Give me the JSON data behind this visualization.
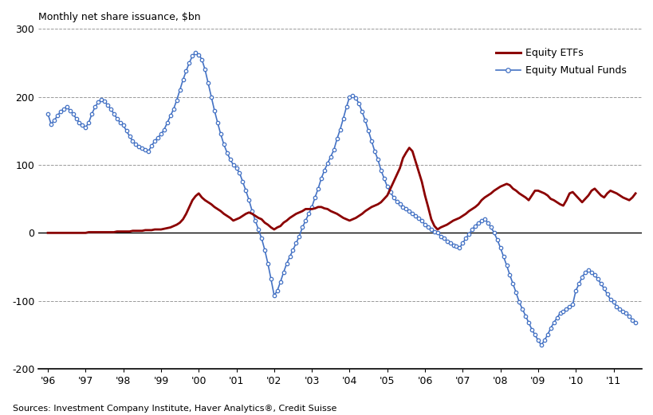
{
  "title": "Monthly net share issuance, $bn",
  "source_text": "Sources: Investment Company Institute, Haver Analytics®, Credit Suisse",
  "etf_color": "#8B0000",
  "mf_color": "#4472C4",
  "ylim": [
    -200,
    300
  ],
  "yticks": [
    -200,
    -100,
    0,
    100,
    200,
    300
  ],
  "x_start_year": 1996,
  "xtick_years": [
    1996,
    1997,
    1998,
    1999,
    2000,
    2001,
    2002,
    2003,
    2004,
    2005,
    2006,
    2007,
    2008,
    2009,
    2010,
    2011
  ],
  "etf_data": [
    0,
    0,
    0,
    0,
    0,
    0,
    0,
    0,
    0,
    0,
    0,
    0,
    0,
    1,
    1,
    1,
    1,
    1,
    1,
    1,
    1,
    1,
    2,
    2,
    2,
    2,
    2,
    3,
    3,
    3,
    3,
    4,
    4,
    4,
    5,
    5,
    5,
    6,
    7,
    8,
    10,
    12,
    15,
    20,
    28,
    38,
    48,
    54,
    58,
    52,
    48,
    45,
    42,
    38,
    35,
    32,
    28,
    25,
    22,
    18,
    20,
    22,
    25,
    28,
    30,
    28,
    25,
    22,
    20,
    15,
    12,
    8,
    5,
    8,
    10,
    15,
    18,
    22,
    25,
    28,
    30,
    32,
    35,
    35,
    35,
    36,
    38,
    38,
    36,
    35,
    32,
    30,
    28,
    25,
    22,
    20,
    18,
    20,
    22,
    25,
    28,
    32,
    35,
    38,
    40,
    42,
    45,
    50,
    55,
    65,
    75,
    85,
    95,
    110,
    118,
    125,
    120,
    105,
    90,
    75,
    55,
    38,
    20,
    10,
    5,
    8,
    10,
    12,
    15,
    18,
    20,
    22,
    25,
    28,
    32,
    35,
    38,
    42,
    48,
    52,
    55,
    58,
    62,
    65,
    68,
    70,
    72,
    70,
    65,
    62,
    58,
    55,
    52,
    48,
    55,
    62,
    62,
    60,
    58,
    55,
    50,
    48,
    45,
    42,
    40,
    48,
    58,
    60,
    55,
    50,
    45,
    50,
    55,
    62,
    65,
    60,
    55,
    52,
    58,
    62,
    60,
    58,
    55,
    52,
    50,
    48,
    52,
    58
  ],
  "mf_data": [
    175,
    160,
    165,
    172,
    178,
    182,
    185,
    180,
    175,
    168,
    162,
    158,
    155,
    162,
    175,
    185,
    192,
    196,
    193,
    188,
    182,
    175,
    168,
    162,
    158,
    150,
    142,
    135,
    130,
    127,
    124,
    122,
    120,
    128,
    135,
    140,
    145,
    152,
    162,
    172,
    182,
    195,
    210,
    225,
    238,
    250,
    260,
    265,
    262,
    255,
    240,
    220,
    200,
    180,
    162,
    145,
    130,
    118,
    108,
    100,
    95,
    88,
    75,
    62,
    48,
    32,
    18,
    5,
    -8,
    -25,
    -45,
    -68,
    -92,
    -85,
    -72,
    -58,
    -45,
    -35,
    -25,
    -15,
    -5,
    8,
    18,
    28,
    38,
    52,
    65,
    80,
    92,
    102,
    112,
    122,
    138,
    152,
    168,
    185,
    200,
    202,
    198,
    190,
    178,
    165,
    150,
    135,
    120,
    108,
    92,
    80,
    68,
    60,
    52,
    46,
    42,
    38,
    35,
    32,
    28,
    25,
    22,
    18,
    12,
    8,
    5,
    2,
    0,
    -5,
    -8,
    -12,
    -15,
    -18,
    -20,
    -22,
    -15,
    -8,
    -2,
    5,
    10,
    15,
    18,
    20,
    15,
    8,
    0,
    -10,
    -22,
    -35,
    -48,
    -62,
    -75,
    -88,
    -102,
    -112,
    -122,
    -132,
    -142,
    -150,
    -158,
    -165,
    -158,
    -150,
    -140,
    -132,
    -125,
    -118,
    -115,
    -112,
    -108,
    -105,
    -85,
    -75,
    -65,
    -58,
    -55,
    -58,
    -62,
    -68,
    -75,
    -82,
    -90,
    -98,
    -102,
    -108,
    -112,
    -115,
    -118,
    -122,
    -128,
    -132
  ]
}
